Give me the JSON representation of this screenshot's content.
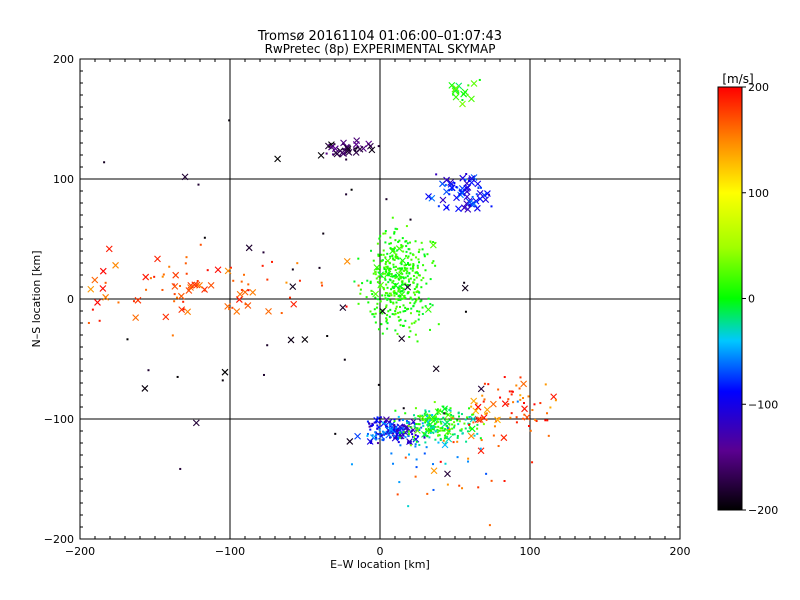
{
  "chart_data": {
    "type": "scatter",
    "title": "Tromsø 20161104 01:06:00–01:07:43",
    "subtitle": "RwPretec (8p) EXPERIMENTAL SKYMAP",
    "xlabel": "E–W location [km]",
    "ylabel": "N–S location [km]",
    "xlim": [
      -200,
      200
    ],
    "ylim": [
      -200,
      200
    ],
    "xticks": [
      -200,
      -100,
      0,
      100,
      200
    ],
    "yticks": [
      -200,
      -100,
      0,
      100,
      200
    ],
    "grid_lines_x": [
      -100,
      0,
      100
    ],
    "grid_lines_y": [
      -100,
      0,
      100
    ],
    "colorbar": {
      "label": "[m/s]",
      "range": [
        -200,
        200
      ],
      "ticks": [
        -200,
        -100,
        0,
        100,
        200
      ],
      "palette": "black-purple-blue-cyan-green-yellow-red"
    },
    "marker_types": {
      "cross": "x",
      "dot": "small dot"
    },
    "clusters": [
      {
        "desc": "central north-south velocity band",
        "center": [
          12,
          15
        ],
        "spread": [
          10,
          20
        ],
        "velocity": [
          -10,
          30
        ],
        "count": 420,
        "cross_frac": 0.03
      },
      {
        "desc": "southern blue cluster",
        "center": [
          10,
          -110
        ],
        "spread": [
          9,
          5
        ],
        "velocity": [
          -140,
          -60
        ],
        "count": 180,
        "cross_frac": 0.15
      },
      {
        "desc": "southern green cluster",
        "center": [
          40,
          -105
        ],
        "spread": [
          12,
          7
        ],
        "velocity": [
          -40,
          40
        ],
        "count": 210,
        "cross_frac": 0.12
      },
      {
        "desc": "south-east red cluster",
        "center": [
          88,
          -90
        ],
        "spread": [
          15,
          14
        ],
        "velocity": [
          130,
          200
        ],
        "count": 70,
        "cross_frac": 0.2
      },
      {
        "desc": "north-east blue cluster",
        "center": [
          55,
          88
        ],
        "spread": [
          9,
          8
        ],
        "velocity": [
          -130,
          -70
        ],
        "count": 70,
        "cross_frac": 0.55
      },
      {
        "desc": "north-east green cluster",
        "center": [
          55,
          173
        ],
        "spread": [
          5,
          6
        ],
        "velocity": [
          -20,
          40
        ],
        "count": 18,
        "cross_frac": 0.5
      },
      {
        "desc": "northern dark cluster",
        "center": [
          -20,
          125
        ],
        "spread": [
          12,
          4
        ],
        "velocity": [
          -200,
          -150
        ],
        "count": 40,
        "cross_frac": 0.6
      },
      {
        "desc": "western red band",
        "center": [
          -120,
          10
        ],
        "spread": [
          40,
          15
        ],
        "velocity": [
          140,
          200
        ],
        "count": 90,
        "cross_frac": 0.5
      },
      {
        "desc": "scattered dark points",
        "center": [
          -40,
          0
        ],
        "spread": [
          70,
          80
        ],
        "velocity": [
          -200,
          -180
        ],
        "count": 45,
        "cross_frac": 0.5
      },
      {
        "desc": "scattered southern reds",
        "center": [
          60,
          -140
        ],
        "spread": [
          30,
          25
        ],
        "velocity": [
          140,
          200
        ],
        "count": 25,
        "cross_frac": 0.1
      },
      {
        "desc": "scattered southern cyan",
        "center": [
          40,
          -130
        ],
        "spread": [
          25,
          20
        ],
        "velocity": [
          -80,
          -40
        ],
        "count": 30,
        "cross_frac": 0.1
      }
    ]
  }
}
